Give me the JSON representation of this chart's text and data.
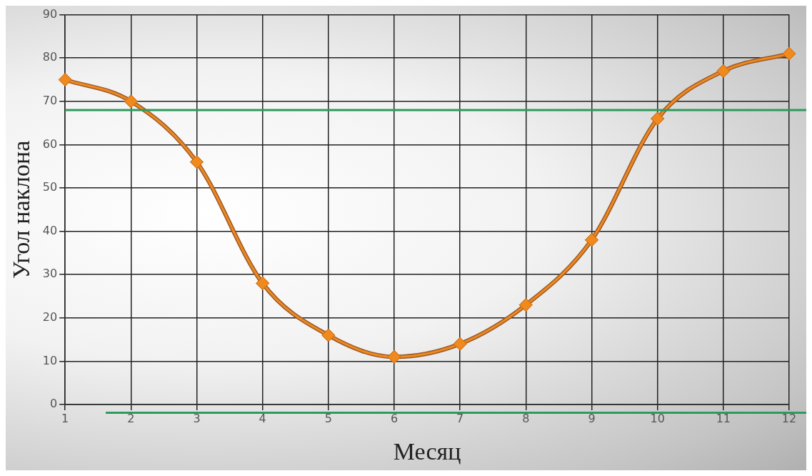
{
  "chart_data": {
    "type": "line",
    "xlabel": "Месяц",
    "ylabel": "Угол наклона",
    "x": [
      1,
      2,
      3,
      4,
      5,
      6,
      7,
      8,
      9,
      10,
      11,
      12
    ],
    "series": [
      {
        "color": "#f0891e",
        "values": [
          75,
          70,
          56,
          28,
          16,
          11,
          14,
          23,
          38,
          66,
          77,
          81
        ]
      }
    ],
    "xlim": [
      1,
      12
    ],
    "xticks": [
      1,
      2,
      3,
      4,
      5,
      6,
      7,
      8,
      9,
      10,
      11,
      12
    ],
    "ylim": [
      0,
      90
    ],
    "yticks": [
      0,
      10,
      20,
      30,
      40,
      50,
      60,
      70,
      80,
      90
    ],
    "ref_lines": [
      {
        "axis": "y",
        "value": 68,
        "color": "#2e9a5c"
      }
    ],
    "grid": true,
    "marker": "diamond",
    "line_style": "solid",
    "legend": false
  }
}
